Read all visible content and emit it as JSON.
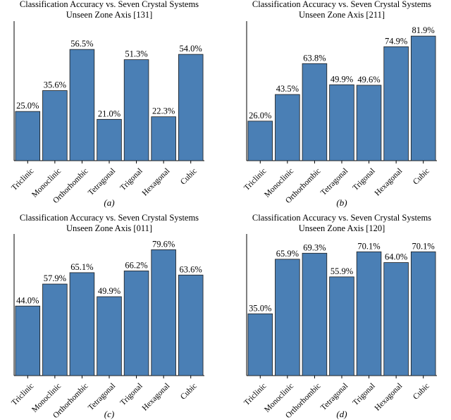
{
  "colors": {
    "bar": "#4a7fb5",
    "bar_edge": "#1a1a1a",
    "axis": "#000000"
  },
  "chart_data": [
    {
      "type": "bar",
      "title_line1": "Classification Accuracy vs. Seven Crystal Systems",
      "title_line2": "Unseen Zone Axis [131]",
      "caption": "(a)",
      "categories": [
        "Triclinic",
        "Monoclinic",
        "Orthorhombic",
        "Tetragonal",
        "Trigonal",
        "Hexagonal",
        "Cubic"
      ],
      "values": [
        25.0,
        35.6,
        56.5,
        21.0,
        51.3,
        22.3,
        54.0
      ],
      "labels": [
        "25.0%",
        "35.6%",
        "56.5%",
        "21.0%",
        "51.3%",
        "22.3%",
        "54.0%"
      ],
      "ylim": [
        0,
        68
      ]
    },
    {
      "type": "bar",
      "title_line1": "Classification Accuracy vs. Seven Crystal Systems",
      "title_line2": "Unseen Zone Axis [211]",
      "caption": "(b)",
      "categories": [
        "Triclinic",
        "Monoclinic",
        "Orthorhombic",
        "Tetragonal",
        "Trigonal",
        "Hexagonal",
        "Cubic"
      ],
      "values": [
        26.0,
        43.5,
        63.8,
        49.9,
        49.6,
        74.9,
        81.9
      ],
      "labels": [
        "26.0%",
        "43.5%",
        "63.8%",
        "49.9%",
        "49.6%",
        "74.9%",
        "81.9%"
      ],
      "ylim": [
        0,
        88
      ]
    },
    {
      "type": "bar",
      "title_line1": "Classification Accuracy vs. Seven Crystal Systems",
      "title_line2": "Unseen Zone Axis [011]",
      "caption": "(c)",
      "categories": [
        "Triclinic",
        "Monoclinic",
        "Orthorhombic",
        "Tetragonal",
        "Trigonal",
        "Hexagonal",
        "Cubic"
      ],
      "values": [
        44.0,
        57.9,
        65.1,
        49.9,
        66.2,
        79.6,
        63.6
      ],
      "labels": [
        "44.0%",
        "57.9%",
        "65.1%",
        "49.9%",
        "66.2%",
        "79.6%",
        "63.6%"
      ],
      "ylim": [
        0,
        86
      ]
    },
    {
      "type": "bar",
      "title_line1": "Classification Accuracy vs. Seven Crystal Systems",
      "title_line2": "Unseen Zone Axis [120]",
      "caption": "(d)",
      "categories": [
        "Triclinic",
        "Monoclinic",
        "Orthorhombic",
        "Tetragonal",
        "Trigonal",
        "Hexagonal",
        "Cubic"
      ],
      "values": [
        35.0,
        65.9,
        69.3,
        55.9,
        70.1,
        64.0,
        70.1
      ],
      "labels": [
        "35.0%",
        "65.9%",
        "69.3%",
        "55.9%",
        "70.1%",
        "64.0%",
        "70.1%"
      ],
      "ylim": [
        0,
        77
      ]
    }
  ]
}
